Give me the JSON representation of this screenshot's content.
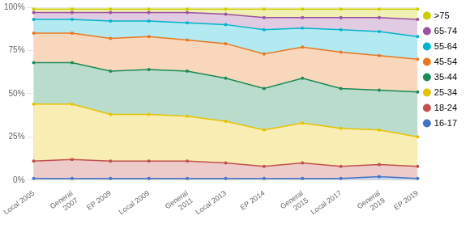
{
  "chart_data": {
    "type": "area",
    "categories": [
      "Local 2005",
      "General\n2007",
      "EP 2009",
      "Local 2009",
      "General\n2011",
      "Local 2013",
      "EP 2014",
      "General\n2015",
      "Local 2017",
      "General\n2019",
      "EP 2019"
    ],
    "series": [
      {
        "name": ">75",
        "color": "#CCCC00",
        "values": [
          99,
          99,
          99,
          99,
          99,
          99,
          99,
          99,
          99,
          99,
          99
        ]
      },
      {
        "name": "65-74",
        "color": "#9B50A0",
        "values": [
          97,
          97,
          97,
          97,
          97,
          96,
          94,
          94,
          94,
          94,
          93
        ]
      },
      {
        "name": "55-64",
        "color": "#00B4CC",
        "values": [
          93,
          93,
          92,
          92,
          91,
          90,
          87,
          88,
          87,
          86,
          83
        ]
      },
      {
        "name": "45-54",
        "color": "#E87820",
        "values": [
          85,
          85,
          82,
          83,
          81,
          79,
          73,
          77,
          74,
          72,
          70
        ]
      },
      {
        "name": "35-44",
        "color": "#1A8A57",
        "values": [
          68,
          68,
          63,
          64,
          63,
          59,
          53,
          59,
          53,
          52,
          51
        ]
      },
      {
        "name": "25-34",
        "color": "#E8C200",
        "values": [
          44,
          44,
          38,
          38,
          37,
          34,
          29,
          33,
          30,
          29,
          25
        ]
      },
      {
        "name": "18-24",
        "color": "#C0504D",
        "values": [
          11,
          12,
          11,
          11,
          11,
          10,
          8,
          10,
          8,
          9,
          8
        ]
      },
      {
        "name": "16-17",
        "color": "#4472C4",
        "values": [
          1,
          1,
          1,
          1,
          1,
          1,
          1,
          1,
          1,
          2,
          1
        ]
      }
    ],
    "ylim": [
      0,
      100
    ],
    "yticks": [
      {
        "value": 0,
        "label": "0%"
      },
      {
        "value": 25,
        "label": "25%"
      },
      {
        "value": 50,
        "label": "50%"
      },
      {
        "value": 75,
        "label": "75%"
      },
      {
        "value": 100,
        "label": "100%"
      }
    ],
    "grid": true,
    "legend": "right",
    "marker": "circle"
  }
}
